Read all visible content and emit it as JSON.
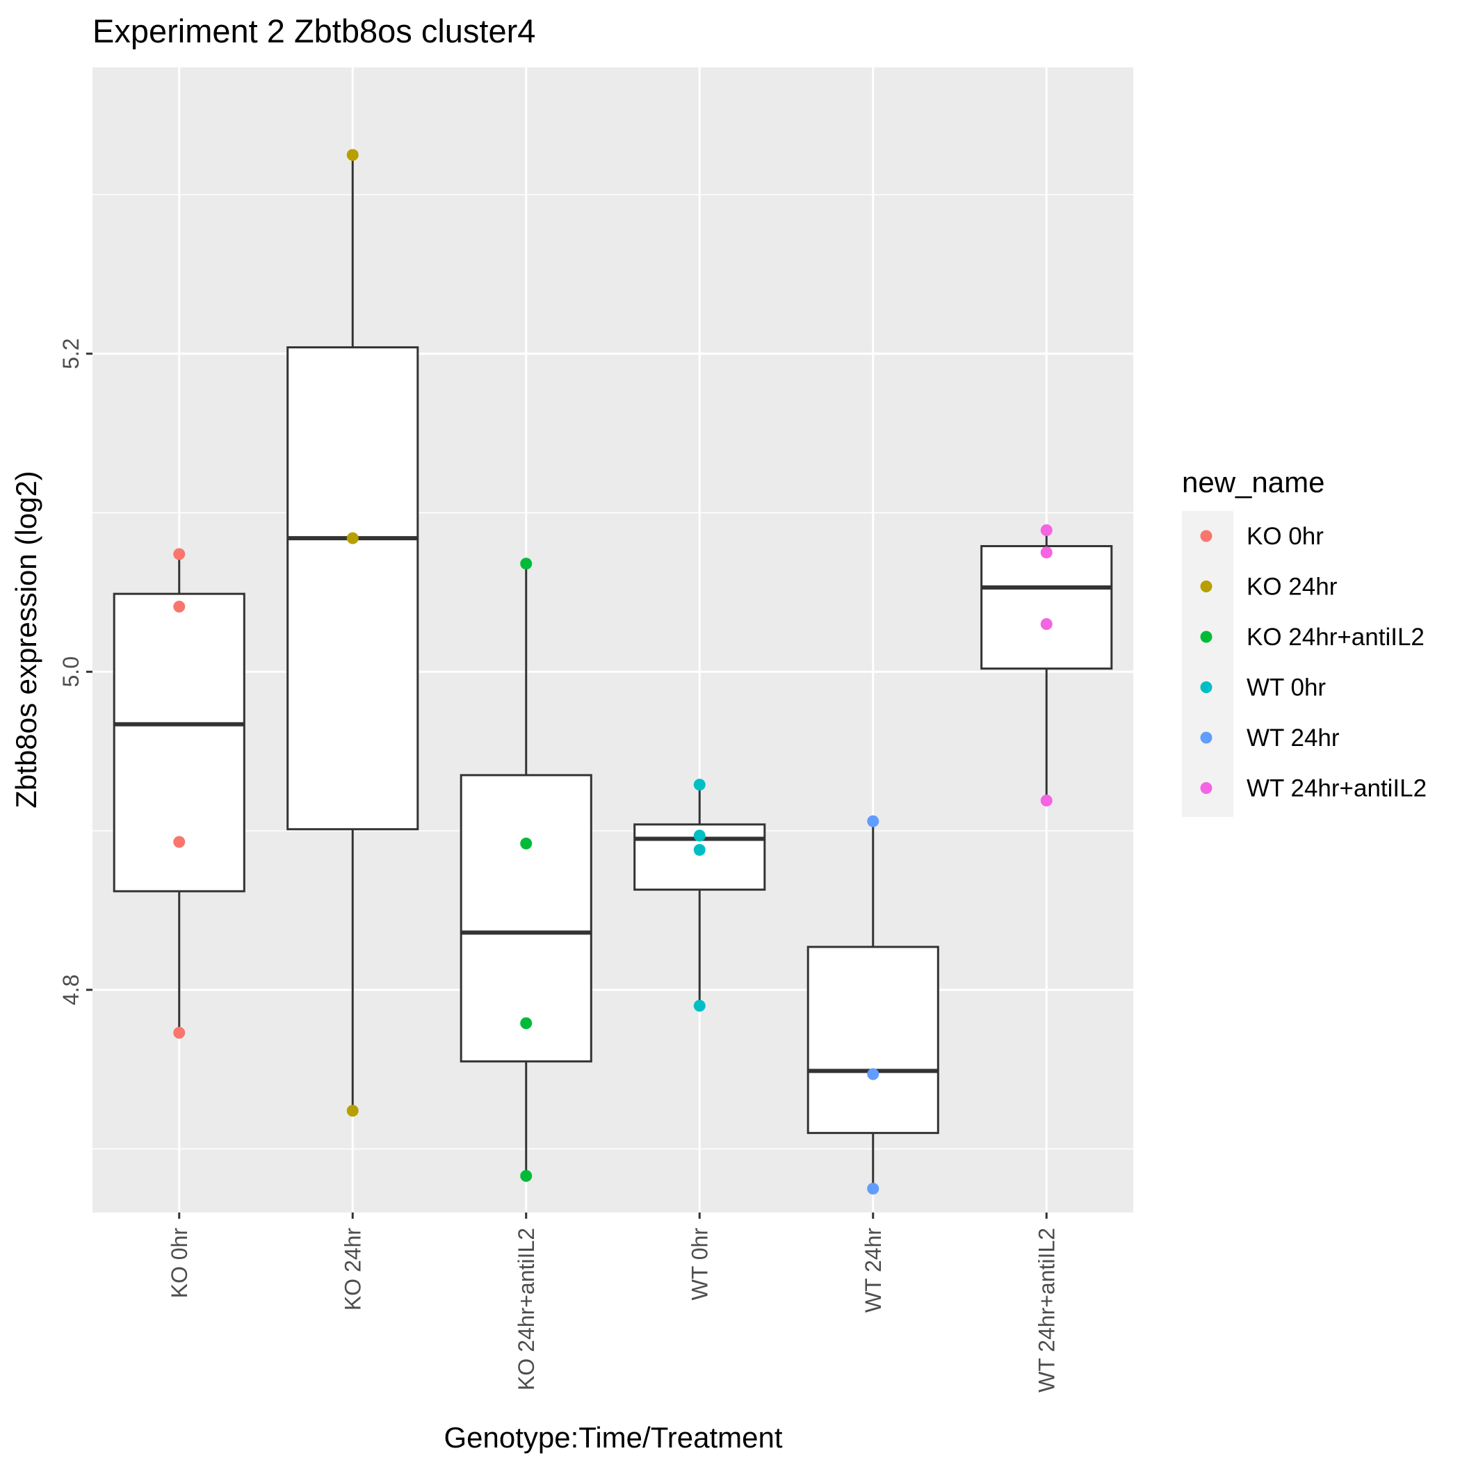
{
  "chart_data": {
    "type": "box",
    "title": "Experiment 2 Zbtb8os cluster4",
    "xlabel": "Genotype:Time/Treatment",
    "ylabel": "Zbtb8os expression (log2)",
    "ylim": [
      4.66,
      5.38
    ],
    "yticks": [
      4.8,
      5.0,
      5.2
    ],
    "ytick_labels": [
      "4.8",
      "5.0",
      "5.2"
    ],
    "grid": true,
    "legend_title": "new_name",
    "legend_position": "right",
    "categories": [
      "KO 0hr",
      "KO 24hr",
      "KO 24hr+antiIL2",
      "WT 0hr",
      "WT 24hr",
      "WT 24hr+antiIL2"
    ],
    "colors": [
      "#F8766D",
      "#B79F00",
      "#00BA38",
      "#00BFC4",
      "#619CFF",
      "#F564E3"
    ],
    "boxes": [
      {
        "whisker_low": 4.773,
        "q1": 4.862,
        "median": 4.967,
        "q3": 5.049,
        "whisker_high": 5.074
      },
      {
        "whisker_low": 4.724,
        "q1": 4.901,
        "median": 5.084,
        "q3": 5.204,
        "whisker_high": 5.325
      },
      {
        "whisker_low": 4.683,
        "q1": 4.755,
        "median": 4.836,
        "q3": 4.935,
        "whisker_high": 5.068
      },
      {
        "whisker_low": 4.79,
        "q1": 4.863,
        "median": 4.895,
        "q3": 4.904,
        "whisker_high": 4.929
      },
      {
        "whisker_low": 4.675,
        "q1": 4.71,
        "median": 4.749,
        "q3": 4.827,
        "whisker_high": 4.906
      },
      {
        "whisker_low": 4.919,
        "q1": 5.002,
        "median": 5.053,
        "q3": 5.079,
        "whisker_high": 5.089
      }
    ],
    "series": [
      {
        "name": "KO 0hr",
        "values": [
          5.074,
          5.041,
          4.893,
          4.773
        ]
      },
      {
        "name": "KO 24hr",
        "values": [
          5.325,
          5.084,
          4.724
        ]
      },
      {
        "name": "KO 24hr+antiIL2",
        "values": [
          5.068,
          4.892,
          4.779,
          4.683
        ]
      },
      {
        "name": "WT 0hr",
        "values": [
          4.929,
          4.897,
          4.888,
          4.79
        ]
      },
      {
        "name": "WT 24hr",
        "values": [
          4.906,
          4.747,
          4.675
        ]
      },
      {
        "name": "WT 24hr+antiIL2",
        "values": [
          5.089,
          5.075,
          5.03,
          4.919
        ]
      }
    ]
  }
}
